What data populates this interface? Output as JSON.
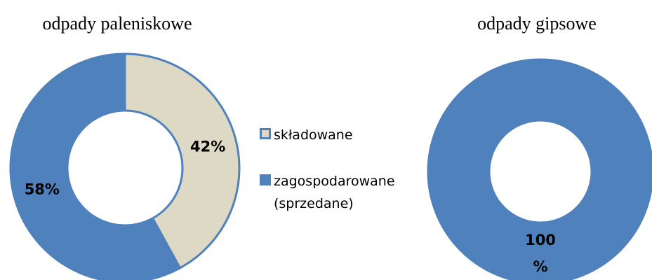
{
  "chart_data": [
    {
      "type": "donut",
      "title": "odpady paleniskowe",
      "categories": [
        "składowane",
        "zagospodarowane (sprzedane)"
      ],
      "values": [
        42,
        58
      ],
      "value_labels": [
        "42%",
        "58%"
      ],
      "colors": [
        "#ddd9c4",
        "#4f81bd"
      ],
      "legend": "right"
    },
    {
      "type": "donut",
      "title": "odpady gipsowe",
      "values": [
        100
      ],
      "value_labels": [
        "100 %"
      ],
      "colors": [
        "#4f81bd"
      ]
    }
  ]
}
